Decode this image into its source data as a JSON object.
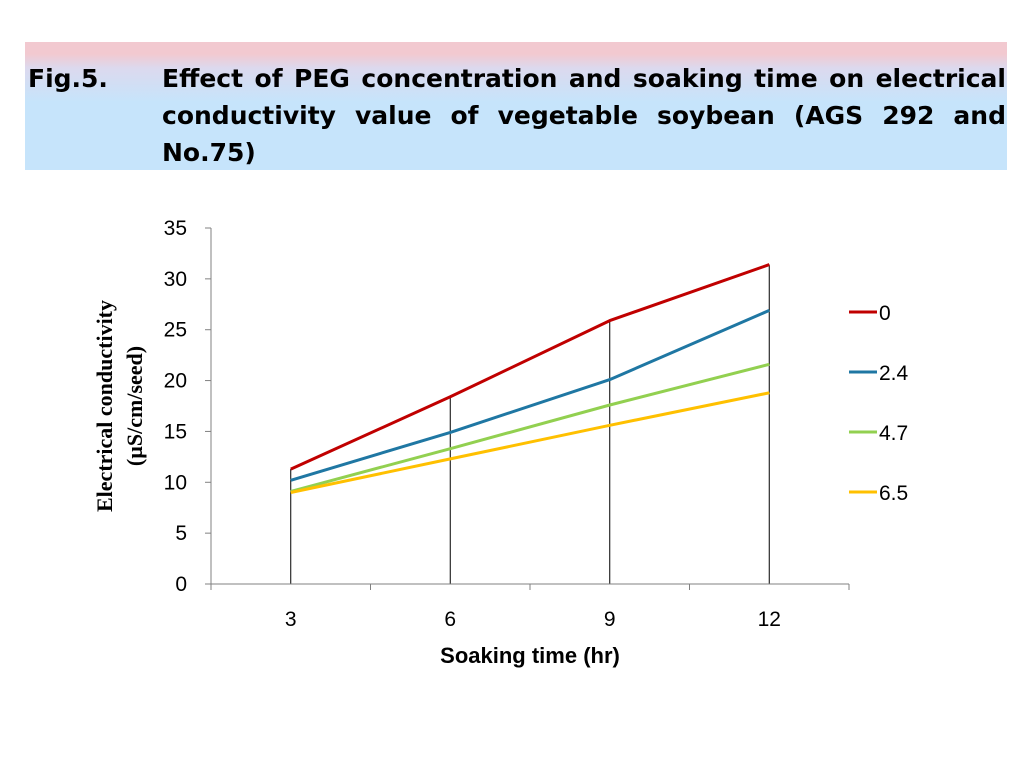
{
  "title": {
    "label": "Fig.5.",
    "text": "Effect of PEG concentration and soaking time on electrical conductivity value of vegetable soybean (AGS 292 and No.75)"
  },
  "colors": {
    "banner_top": "#f2c9d0",
    "banner_bottom": "#c6e4fb"
  },
  "chart_data": {
    "type": "line",
    "title": "",
    "xlabel": "Soaking time (hr)",
    "ylabel_lines": [
      "Electrical conductivity",
      "(µS/cm/seed)"
    ],
    "categories": [
      "3",
      "6",
      "9",
      "12"
    ],
    "ylim": [
      0,
      35
    ],
    "yticks": [
      0,
      5,
      10,
      15,
      20,
      25,
      30,
      35
    ],
    "drop_lines": true,
    "legend_position": "right",
    "series": [
      {
        "name": "0",
        "color": "#c00000",
        "values": [
          11.3,
          18.4,
          25.9,
          31.4
        ]
      },
      {
        "name": "2.4",
        "color": "#1f77a3",
        "values": [
          10.2,
          14.9,
          20.1,
          26.9
        ]
      },
      {
        "name": "4.7",
        "color": "#92d050",
        "values": [
          9.1,
          13.3,
          17.6,
          21.6
        ]
      },
      {
        "name": "6.5",
        "color": "#ffc000",
        "values": [
          9.0,
          12.3,
          15.6,
          18.8
        ]
      }
    ]
  }
}
